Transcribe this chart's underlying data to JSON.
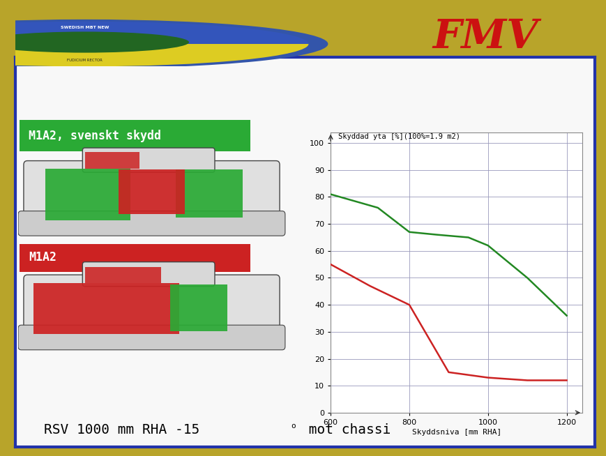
{
  "background_outer": "#b8a42a",
  "background_card": "#f8f8f8",
  "chart_bg": "#ffffff",
  "grid_color": "#9999bb",
  "chart_title": "Skyddad yta [%](100%=1.9 m2)",
  "xlabel": "Skyddsniva [mm RHA]",
  "xlim": [
    600,
    1240
  ],
  "ylim": [
    0,
    104
  ],
  "xticks": [
    600,
    800,
    1000,
    1200
  ],
  "yticks": [
    0,
    10,
    20,
    30,
    40,
    50,
    60,
    70,
    80,
    90,
    100
  ],
  "green_line_x": [
    600,
    720,
    800,
    870,
    950,
    1000,
    1100,
    1200
  ],
  "green_line_y": [
    81,
    76,
    67,
    66,
    65,
    62,
    50,
    36
  ],
  "red_line_x": [
    600,
    700,
    800,
    900,
    950,
    1000,
    1100,
    1200
  ],
  "red_line_y": [
    55,
    47,
    40,
    15,
    14,
    13,
    12,
    12
  ],
  "green_color": "#228822",
  "red_color": "#cc2222",
  "line_width": 1.8,
  "label_green": "M1A2, svenskt skydd",
  "label_red": "M1A2",
  "banner_green": "#2aaa35",
  "banner_red": "#cc2222",
  "text_white": "#ffffff",
  "bottom_text": "RSV 1000 mm RHA -15",
  "bottom_text2": " mot chassi",
  "fmv_color": "#cc1111",
  "card_border": "#2233aa",
  "gold": "#b8a42a",
  "chart_border": "#555577"
}
